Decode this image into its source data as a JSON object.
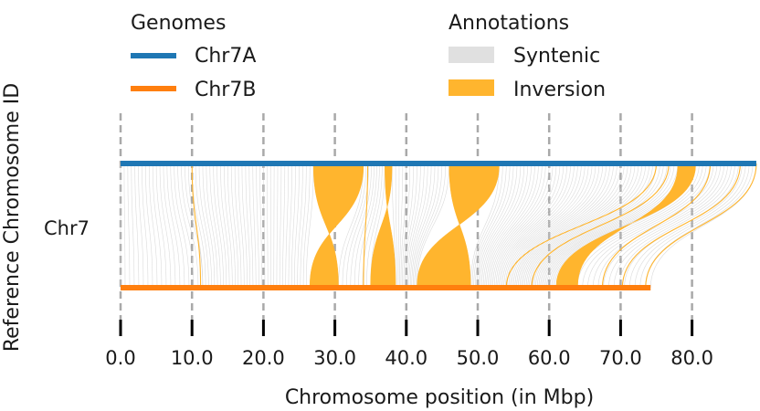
{
  "chart_data": {
    "type": "synteny",
    "xlabel": "Chromosome position (in Mbp)",
    "ylabel": "Reference Chromosome ID",
    "category_label": "Chr7",
    "xlim": [
      0,
      89
    ],
    "xticks": [
      0,
      10,
      20,
      30,
      40,
      50,
      60,
      70,
      80
    ],
    "tick_labels": [
      "0.0",
      "10.0",
      "20.0",
      "30.0",
      "40.0",
      "50.0",
      "60.0",
      "70.0",
      "80.0"
    ],
    "grid": "vertical dashed at ticks",
    "legends": {
      "genomes": {
        "title": "Genomes",
        "placement": "top-left",
        "items": [
          {
            "label": "Chr7A",
            "color": "#1f77b4"
          },
          {
            "label": "Chr7B",
            "color": "#ff7f0e"
          }
        ]
      },
      "annotations": {
        "title": "Annotations",
        "placement": "top-center",
        "items": [
          {
            "label": "Syntenic",
            "color": "#e0e0e0"
          },
          {
            "label": "Inversion",
            "color": "#ffb52e"
          }
        ]
      }
    },
    "genomes": [
      {
        "name": "Chr7A",
        "start": 0,
        "end": 89,
        "color": "#1f77b4"
      },
      {
        "name": "Chr7B",
        "start": 0,
        "end": 74.2,
        "color": "#ff7f0e"
      }
    ],
    "syntenic_regions": [
      {
        "a": [
          0.0,
          9.0
        ],
        "b": [
          0.0,
          11.5
        ]
      },
      {
        "a": [
          9.5,
          27.0
        ],
        "b": [
          11.5,
          26.0
        ]
      },
      {
        "a": [
          34.0,
          37.0
        ],
        "b": [
          30.5,
          35.0
        ]
      },
      {
        "a": [
          38.0,
          46.0
        ],
        "b": [
          38.5,
          41.5
        ]
      },
      {
        "a": [
          53.0,
          80.0
        ],
        "b": [
          49.0,
          61.0
        ]
      },
      {
        "a": [
          80.0,
          89.0
        ],
        "b": [
          61.0,
          74.2
        ]
      }
    ],
    "inversions": [
      {
        "a": [
          27.0,
          34.0
        ],
        "b": [
          26.5,
          30.5
        ],
        "lw": 2
      },
      {
        "a": [
          37.0,
          38.0
        ],
        "b": [
          35.0,
          38.5
        ],
        "lw": 2
      },
      {
        "a": [
          46.0,
          53.0
        ],
        "b": [
          41.5,
          49.0
        ],
        "lw": 2
      },
      {
        "a": [
          78.0,
          80.5
        ],
        "b": [
          61.0,
          64.0
        ],
        "lw": 2
      },
      {
        "a": [
          9.8,
          10.2
        ],
        "b": [
          11.0,
          11.4
        ],
        "lw": 1
      },
      {
        "a": [
          34.4,
          34.8
        ],
        "b": [
          33.8,
          34.2
        ],
        "lw": 1
      },
      {
        "a": [
          74.8,
          75.2
        ],
        "b": [
          53.8,
          54.2
        ],
        "lw": 1
      },
      {
        "a": [
          76.5,
          77.0
        ],
        "b": [
          57.3,
          57.8
        ],
        "lw": 1
      },
      {
        "a": [
          82.3,
          82.8
        ],
        "b": [
          67.2,
          67.7
        ],
        "lw": 1
      },
      {
        "a": [
          86.5,
          87.0
        ],
        "b": [
          70.0,
          70.5
        ],
        "lw": 1
      },
      {
        "a": [
          88.8,
          89.2
        ],
        "b": [
          73.3,
          73.7
        ],
        "lw": 1
      }
    ]
  }
}
